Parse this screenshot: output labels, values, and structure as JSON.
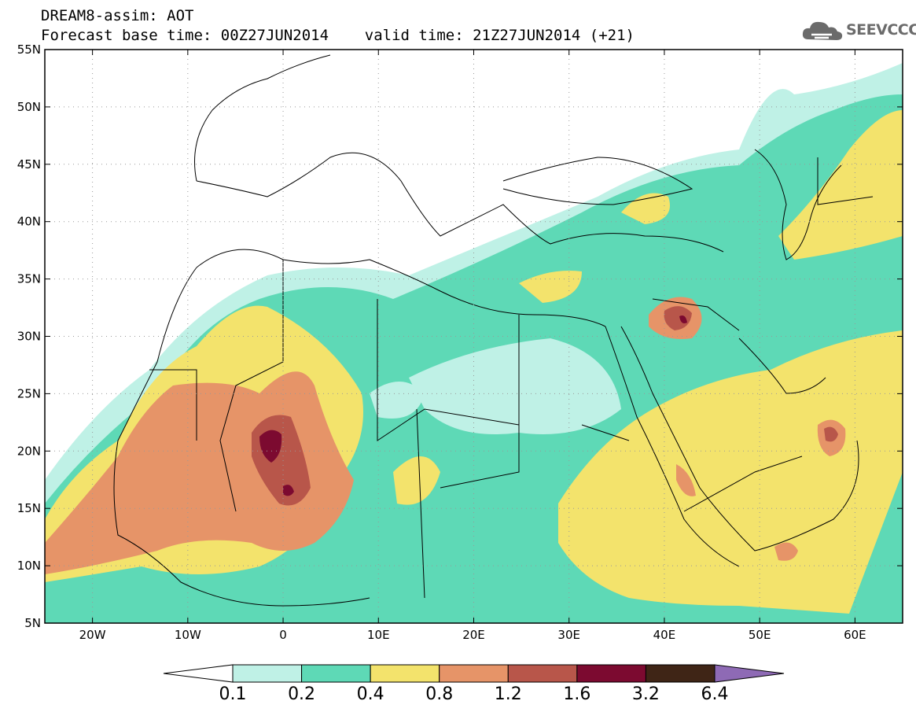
{
  "title": {
    "line1": "DREAM8-assim: AOT",
    "line2": "Forecast base time: 00Z27JUN2014    valid time: 21Z27JUN2014 (+21)"
  },
  "logo": {
    "text": "SEEVCCC",
    "icon": "cloud-icon",
    "color": "#6b6b6b"
  },
  "map": {
    "variable": "AOT",
    "lon_range": [
      -25,
      65
    ],
    "lat_range": [
      5,
      55
    ],
    "lat_ticks": [
      "55N",
      "50N",
      "45N",
      "40N",
      "35N",
      "30N",
      "25N",
      "20N",
      "15N",
      "10N",
      "5N"
    ],
    "lon_ticks": [
      "20W",
      "10W",
      "0",
      "10E",
      "20E",
      "30E",
      "40E",
      "50E",
      "60E"
    ],
    "grid": "dotted",
    "coastlines_and_borders": true
  },
  "colorbar": {
    "labels": [
      "0.1",
      "0.2",
      "0.4",
      "0.8",
      "1.2",
      "1.6",
      "3.2",
      "6.4"
    ],
    "colors": [
      "#ffffff",
      "#bff1e6",
      "#5ed9b6",
      "#f3e36c",
      "#e69468",
      "#b8564a",
      "#7c0a30",
      "#3f2516",
      "#8e6ab5"
    ]
  }
}
